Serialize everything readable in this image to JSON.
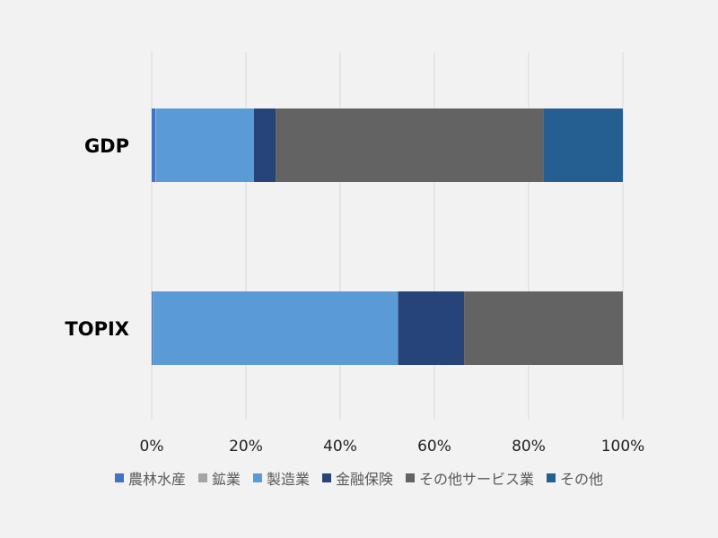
{
  "chart_data": {
    "type": "bar",
    "orientation": "horizontal",
    "stacked": "percent",
    "categories": [
      "GDP",
      "TOPIX"
    ],
    "series": [
      {
        "name": "農林水産",
        "color": "#4472c4",
        "values": [
          0.8,
          0.2
        ]
      },
      {
        "name": "鉱業",
        "color": "#a5a5a5",
        "values": [
          0.1,
          0.1
        ]
      },
      {
        "name": "製造業",
        "color": "#5b9bd5",
        "values": [
          20.8,
          52.0
        ]
      },
      {
        "name": "金融保険",
        "color": "#264478",
        "values": [
          4.6,
          14.0
        ]
      },
      {
        "name": "その他サービス業",
        "color": "#636363",
        "values": [
          56.8,
          33.7
        ]
      },
      {
        "name": "その他",
        "color": "#255e91",
        "values": [
          16.9,
          0.0
        ]
      }
    ],
    "xlim": [
      0,
      100
    ],
    "xticks": [
      "0%",
      "20%",
      "40%",
      "60%",
      "80%",
      "100%"
    ],
    "grid": true,
    "legend": "bottom"
  }
}
